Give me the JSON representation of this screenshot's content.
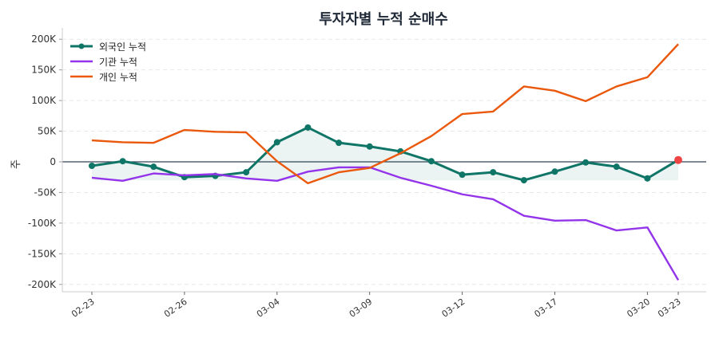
{
  "chart_data": {
    "type": "line",
    "title": "투자자별 누적 순매수",
    "xlabel": "",
    "ylabel": "주",
    "ylim": [
      -212000,
      212000
    ],
    "yticks": [
      -200000,
      -150000,
      -100000,
      -50000,
      0,
      50000,
      100000,
      150000,
      200000
    ],
    "ytick_labels": [
      "-200K",
      "-150K",
      "-100K",
      "-50K",
      "0",
      "50K",
      "100K",
      "150K",
      "200K"
    ],
    "grid": true,
    "legend": "top-left",
    "x": [
      "02-23",
      "02-24",
      "02-25",
      "02-26",
      "02-27",
      "03-02",
      "03-04",
      "03-05",
      "03-06",
      "03-09",
      "03-10",
      "03-11",
      "03-12",
      "03-13",
      "03-16",
      "03-17",
      "03-18",
      "03-19",
      "03-20",
      "03-23"
    ],
    "xtick_labels": [
      "02-23",
      "02-26",
      "03-04",
      "03-09",
      "03-12",
      "03-17",
      "03-20",
      "03-23"
    ],
    "series": [
      {
        "name": "외국인 누적",
        "color": "#0f7566",
        "markers": true,
        "fill": true,
        "values": [
          -6500,
          1000,
          -8000,
          -25000,
          -23000,
          -17000,
          32000,
          56000,
          31000,
          25000,
          17000,
          1000,
          -21000,
          -17000,
          -30000,
          -16000,
          -1000,
          -8000,
          -27000,
          3000
        ]
      },
      {
        "name": "기관 누적",
        "color": "#9333ea",
        "markers": false,
        "values": [
          -26000,
          -31000,
          -19000,
          -22000,
          -20000,
          -27000,
          -31000,
          -16000,
          -9000,
          -9000,
          -26000,
          -39000,
          -53000,
          -61000,
          -88000,
          -96000,
          -95000,
          -112000,
          -107000,
          -193000
        ]
      },
      {
        "name": "개인 누적",
        "color": "#ea580c",
        "markers": false,
        "values": [
          35000,
          32000,
          31000,
          52000,
          49000,
          48000,
          1000,
          -35000,
          -17000,
          -10000,
          14000,
          42000,
          78000,
          82000,
          123000,
          116000,
          99000,
          123000,
          138000,
          192000
        ]
      }
    ],
    "highlight_last_color": "#ef4444"
  }
}
